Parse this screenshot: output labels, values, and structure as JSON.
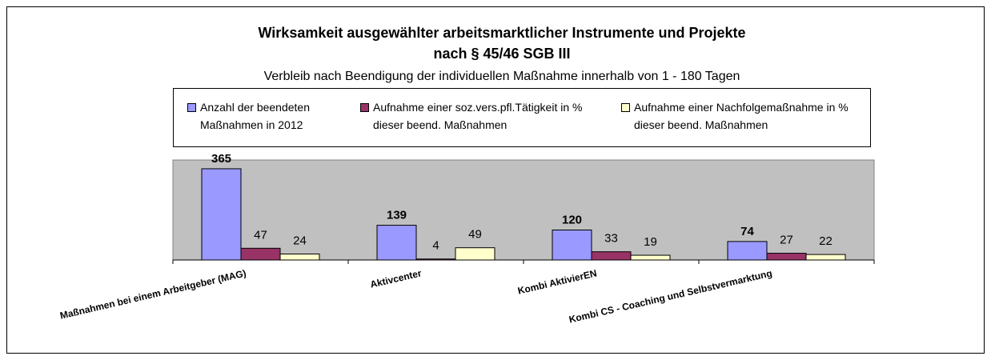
{
  "chart_data": {
    "type": "bar",
    "title": "Wirksamkeit ausgewählter arbeitsmarktlicher Instrumente und Projekte",
    "title_line2": "nach § 45/46 SGB III",
    "subtitle": "Verbleib nach Beendigung der individuellen Maßnahme innerhalb von 1 - 180 Tagen",
    "categories": [
      "Maßnahmen bei einem Arbeitgeber (MAG)",
      "Aktivcenter",
      "Kombi AktivierEN",
      "Kombi CS - Coaching und Selbstvermarktung"
    ],
    "series": [
      {
        "name": "Anzahl der beendeten Maßnahmen in 2012",
        "color": "#9999ff",
        "values": [
          365,
          139,
          120,
          74
        ]
      },
      {
        "name": "Aufnahme einer soz.vers.pfl.Tätigkeit in % dieser beend. Maßnahmen",
        "color": "#993366",
        "values": [
          47,
          4,
          33,
          27
        ]
      },
      {
        "name": "Aufnahme einer Nachfolgemaßnahme in % dieser beend. Maßnahmen",
        "color": "#ffffcc",
        "values": [
          24,
          49,
          19,
          22
        ]
      }
    ],
    "ylim": [
      0,
      400
    ],
    "plot_background": "#c0c0c0"
  }
}
